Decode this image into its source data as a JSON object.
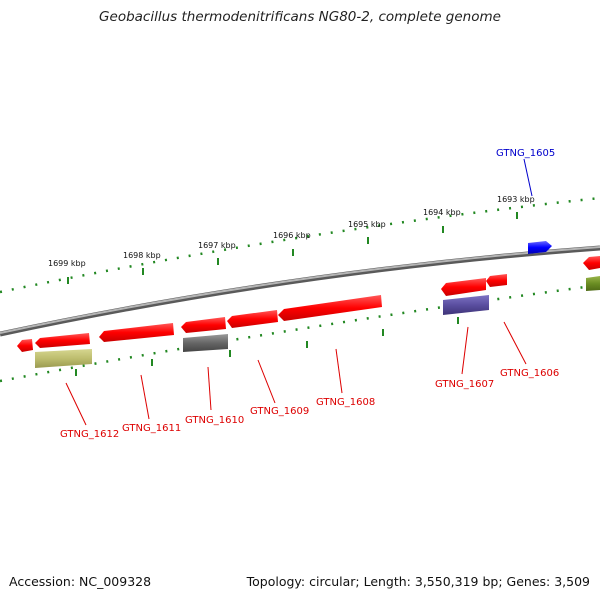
{
  "header": {
    "title": "Geobacillus thermodenitrificans NG80-2, complete genome"
  },
  "footer": {
    "accession": "Accession: NC_009328",
    "topology": "Topology: circular; Length: 3,550,319 bp; Genes: 3,509"
  },
  "map": {
    "ticks": [
      "1693 kbp",
      "1694 kbp",
      "1695 kbp",
      "1696 kbp",
      "1697 kbp",
      "1698 kbp",
      "1699 kbp"
    ],
    "genes": [
      "GTNG_1605",
      "GTNG_1606",
      "GTNG_1607",
      "GTNG_1608",
      "GTNG_1609",
      "GTNG_1610",
      "GTNG_1611",
      "GTNG_1612"
    ]
  },
  "colors": {
    "forward": "#0000ff",
    "reverse": "#ff0000",
    "backbone": "#888888",
    "ticks": "#228822",
    "gray": "#666666",
    "olive": "#bdbd6e",
    "purple": "#5a4ea0",
    "green": "#6b8e23"
  }
}
